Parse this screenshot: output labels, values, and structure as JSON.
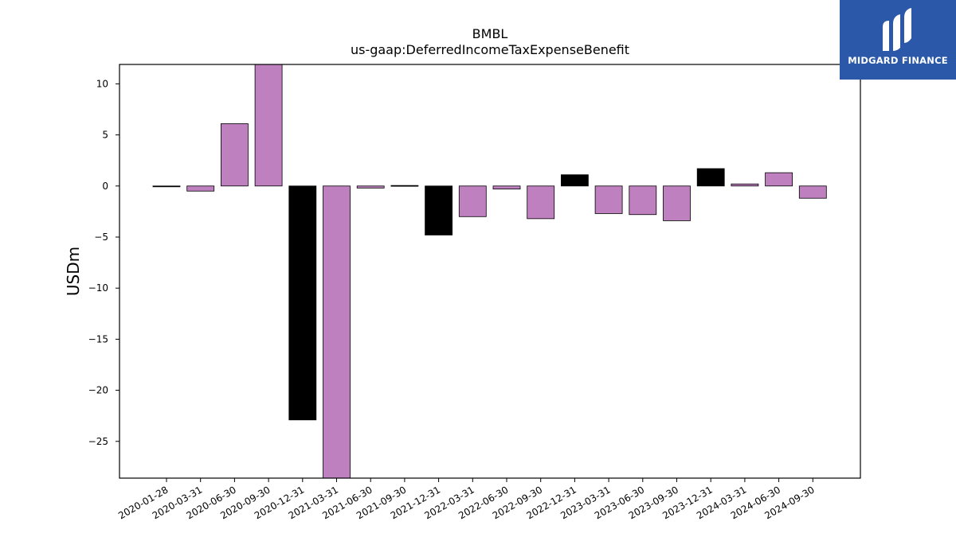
{
  "chart_data": {
    "type": "bar",
    "title": "BMBL",
    "subtitle": "us-gaap:DeferredIncomeTaxExpenseBenefit",
    "xlabel": "",
    "ylabel": "USDm",
    "ylim": [
      -28.6,
      11.9
    ],
    "yticks": [
      10,
      5,
      0,
      -5,
      -10,
      -15,
      -20,
      -25
    ],
    "grid": false,
    "categories": [
      "2020-01-28",
      "2020-03-31",
      "2020-06-30",
      "2020-09-30",
      "2020-12-31",
      "2021-03-31",
      "2021-06-30",
      "2021-09-30",
      "2021-12-31",
      "2022-03-31",
      "2022-06-30",
      "2022-09-30",
      "2022-12-31",
      "2023-03-31",
      "2023-06-30",
      "2023-09-30",
      "2023-12-31",
      "2024-03-31",
      "2024-06-30",
      "2024-09-30"
    ],
    "values": [
      0.0,
      -0.5,
      6.1,
      12.5,
      -22.9,
      -29.5,
      -0.2,
      0.05,
      -4.8,
      -3.0,
      -0.3,
      -3.2,
      1.1,
      -2.7,
      -2.8,
      -3.4,
      1.7,
      0.2,
      1.3,
      -1.2
    ],
    "bar_colors": [
      "#000000",
      "#bf80bf",
      "#bf80bf",
      "#bf80bf",
      "#000000",
      "#bf80bf",
      "#bf80bf",
      "#000000",
      "#000000",
      "#bf80bf",
      "#bf80bf",
      "#bf80bf",
      "#000000",
      "#bf80bf",
      "#bf80bf",
      "#bf80bf",
      "#000000",
      "#bf80bf",
      "#bf80bf",
      "#bf80bf"
    ]
  },
  "logo": {
    "text": "MIDGARD FINANCE",
    "color": "#2b58a8"
  }
}
